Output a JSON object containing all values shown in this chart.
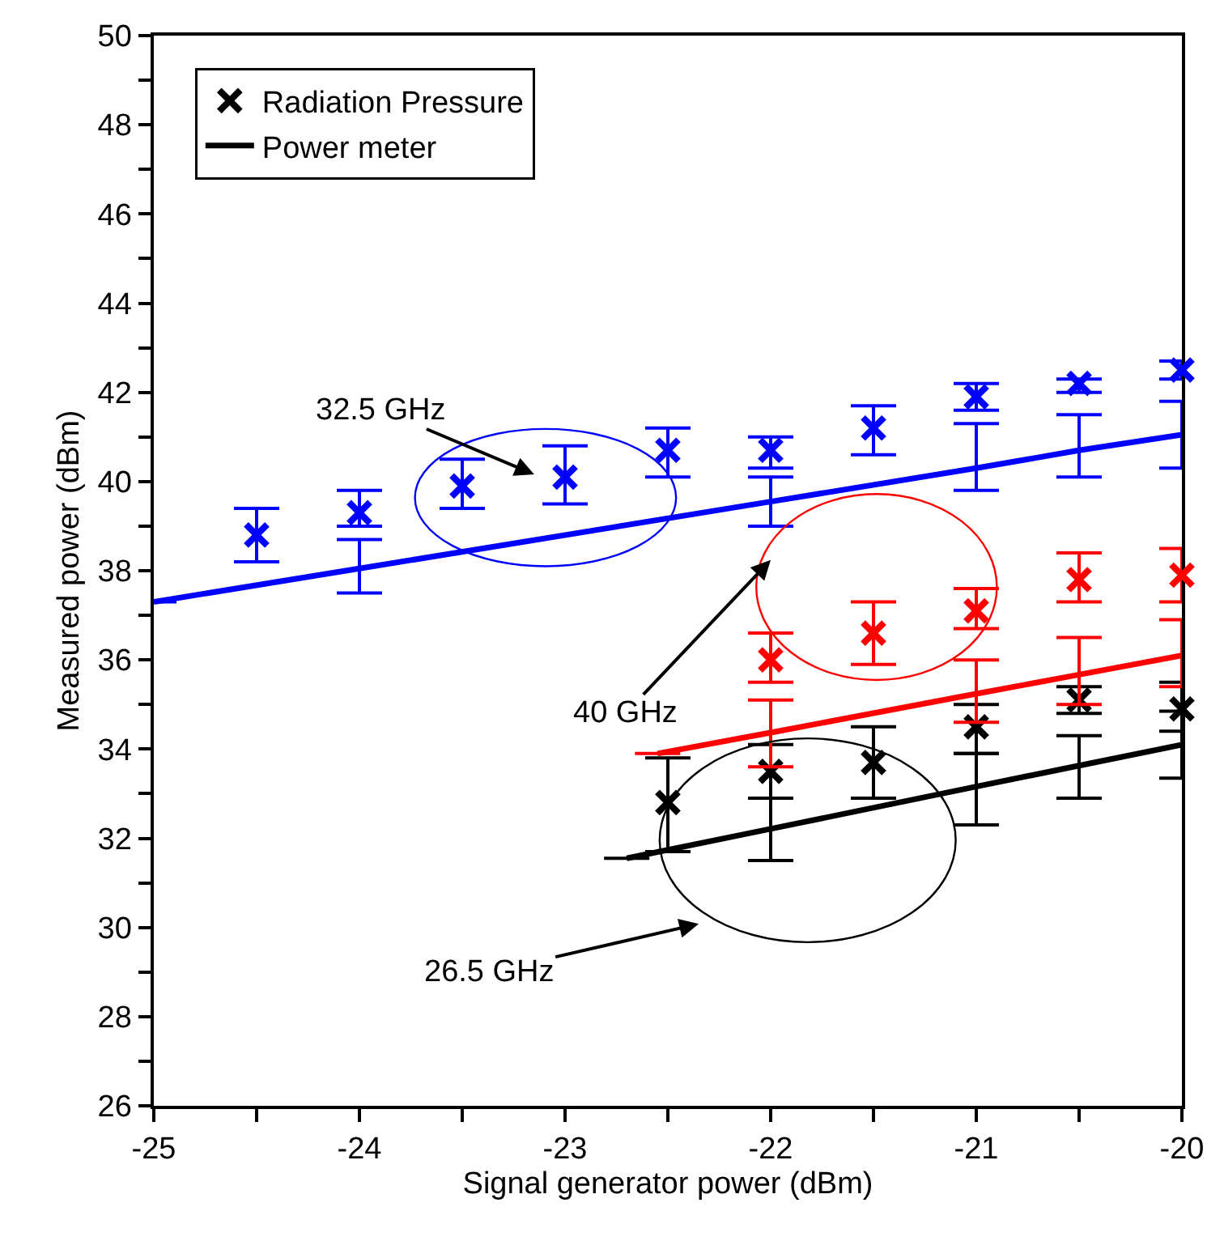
{
  "chart_data": {
    "type": "scatter",
    "xlabel": "Signal generator power (dBm)",
    "ylabel": "Measured power (dBm)",
    "xlim": [
      -25,
      -20
    ],
    "xticks": [
      -25,
      {
        "value": -24.5,
        "label": null
      },
      -24,
      {
        "value": -23.5,
        "label": null
      },
      -23,
      {
        "value": -22.5,
        "label": null
      },
      -22,
      {
        "value": -21.5,
        "label": null
      },
      -21,
      {
        "value": -20.5,
        "label": null
      },
      -20
    ],
    "ylim": [
      26,
      50
    ],
    "yticks": [
      26,
      {
        "value": 27,
        "label": null
      },
      28,
      {
        "value": 29,
        "label": null
      },
      30,
      {
        "value": 31,
        "label": null
      },
      32,
      {
        "value": 33,
        "label": null
      },
      34,
      {
        "value": 35,
        "label": null
      },
      36,
      {
        "value": 37,
        "label": null
      },
      38,
      {
        "value": 39,
        "label": null
      },
      40,
      {
        "value": 41,
        "label": null
      },
      42,
      {
        "value": 43,
        "label": null
      },
      44,
      {
        "value": 45,
        "label": null
      },
      46,
      {
        "value": 47,
        "label": null
      },
      48,
      {
        "value": 49,
        "label": null
      },
      50
    ],
    "grid": false,
    "legend": "top left",
    "marker": "cross",
    "series": [
      {
        "color": "#000000",
        "name": "Radiation Pressure",
        "x": [
          -22.5,
          -22,
          -21.5,
          -21,
          -20.5,
          -20
        ],
        "values": [
          32.8,
          33.5,
          33.7,
          34.5,
          35.1,
          34.9
        ],
        "errors": [
          [
            31.7,
            33.8
          ],
          [
            32.9,
            34.1
          ],
          [
            32.9,
            34.5
          ],
          [
            33.9,
            35.0
          ],
          [
            34.8,
            35.4
          ],
          [
            34.4,
            35.5
          ]
        ]
      },
      {
        "color": "#0000ff",
        "x": [
          -24.5,
          -24,
          -23.5,
          -23,
          -22.5,
          -22,
          -21.5,
          -21,
          -20.5,
          -20
        ],
        "values": [
          38.8,
          39.3,
          39.9,
          40.1,
          40.7,
          40.7,
          41.2,
          41.9,
          42.2,
          42.5
        ],
        "errors": [
          [
            38.2,
            39.4
          ],
          [
            39.0,
            39.8
          ],
          [
            39.4,
            40.5
          ],
          [
            39.5,
            40.8
          ],
          [
            40.1,
            41.2
          ],
          [
            40.3,
            41.0
          ],
          [
            40.6,
            41.7
          ],
          [
            41.6,
            42.2
          ],
          [
            42.0,
            42.3
          ],
          [
            42.3,
            42.7
          ]
        ]
      },
      {
        "color": "#ff0000",
        "x": [
          -22,
          -21.5,
          -21,
          -20.5,
          -20
        ],
        "values": [
          36.0,
          36.6,
          37.1,
          37.8,
          37.9
        ],
        "errors": [
          [
            35.5,
            36.6
          ],
          [
            35.9,
            37.3
          ],
          [
            36.7,
            37.6
          ],
          [
            37.3,
            38.4
          ],
          [
            37.3,
            38.5
          ]
        ]
      },
      {
        "type": "line",
        "color": "#000000",
        "name": "Power meter",
        "marker": "none",
        "x": [
          -22.7,
          -22,
          -21,
          -20.5,
          -20
        ],
        "values": [
          31.55,
          32.21,
          33.16,
          33.63,
          34.1
        ],
        "errors": [
          null,
          [
            31.5,
            32.9
          ],
          [
            32.3,
            33.9
          ],
          [
            32.9,
            34.3
          ],
          [
            33.35,
            34.85
          ]
        ]
      },
      {
        "type": "line",
        "color": "#0000ff",
        "marker": "none",
        "x": [
          -25,
          -24,
          -22,
          -21,
          -20.5,
          -20
        ],
        "values": [
          37.3,
          38.05,
          39.55,
          40.3,
          40.7,
          41.05
        ],
        "errors": [
          null,
          [
            37.5,
            38.7
          ],
          [
            39.0,
            40.1
          ],
          [
            39.8,
            41.3
          ],
          [
            40.1,
            41.5
          ],
          [
            40.3,
            41.8
          ]
        ]
      },
      {
        "type": "line",
        "color": "#ff0000",
        "marker": "none",
        "x": [
          -22.55,
          -22,
          -21,
          -20.5,
          -20
        ],
        "values": [
          33.9,
          34.37,
          35.24,
          35.67,
          36.1
        ],
        "errors": [
          null,
          [
            33.6,
            35.1
          ],
          [
            34.6,
            36.0
          ],
          [
            35.0,
            36.5
          ],
          [
            35.4,
            36.9
          ]
        ]
      }
    ],
    "annotations": [
      "32.5 GHz",
      "40 GHz",
      "26.5 GHz"
    ]
  }
}
